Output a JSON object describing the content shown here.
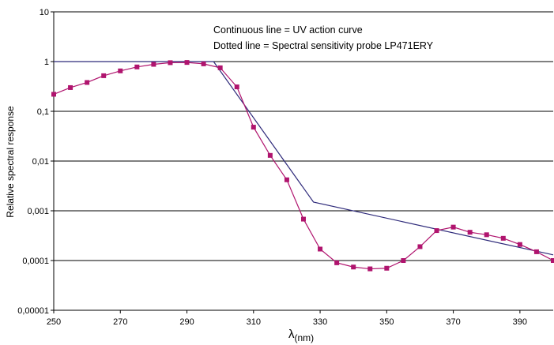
{
  "chart_data": {
    "type": "line",
    "ylabel": "Relative spectral response",
    "xlabel_main": "λ",
    "xlabel_sub": "(nm)",
    "annotations": [
      "Continuous line = UV action curve",
      "Dotted line = Spectral sensitivity probe LP471ERY"
    ],
    "xlim": [
      250,
      400
    ],
    "ylim": [
      1e-05,
      10
    ],
    "yscale": "log",
    "grid": "horizontal",
    "legend": "none",
    "x_ticks": [
      "250",
      "270",
      "290",
      "310",
      "330",
      "350",
      "370",
      "390"
    ],
    "y_ticks": [
      "0,00001",
      "0,0001",
      "0,001",
      "0,01",
      "0,1",
      "1",
      "10"
    ],
    "series": [
      {
        "role": "uv-action-curve",
        "style": "solid",
        "color": "#2e2a7a",
        "x": [
          250,
          298,
          328,
          400
        ],
        "y": [
          1,
          1,
          0.0015,
          0.00013
        ]
      },
      {
        "role": "probe-sensitivity",
        "style": "markers",
        "color": "#b0146e",
        "x": [
          250,
          255,
          260,
          265,
          270,
          275,
          280,
          285,
          290,
          295,
          300,
          305,
          310,
          315,
          320,
          325,
          330,
          335,
          340,
          345,
          350,
          355,
          360,
          365,
          370,
          375,
          380,
          385,
          390,
          395,
          400
        ],
        "y": [
          0.22,
          0.3,
          0.38,
          0.52,
          0.65,
          0.78,
          0.88,
          0.95,
          0.96,
          0.9,
          0.75,
          0.31,
          0.048,
          0.013,
          0.0042,
          0.00068,
          0.00017,
          9e-05,
          7.4e-05,
          6.8e-05,
          7e-05,
          0.0001,
          0.00019,
          0.0004,
          0.00047,
          0.00037,
          0.00033,
          0.00028,
          0.00021,
          0.00015,
          0.0001
        ]
      }
    ]
  }
}
